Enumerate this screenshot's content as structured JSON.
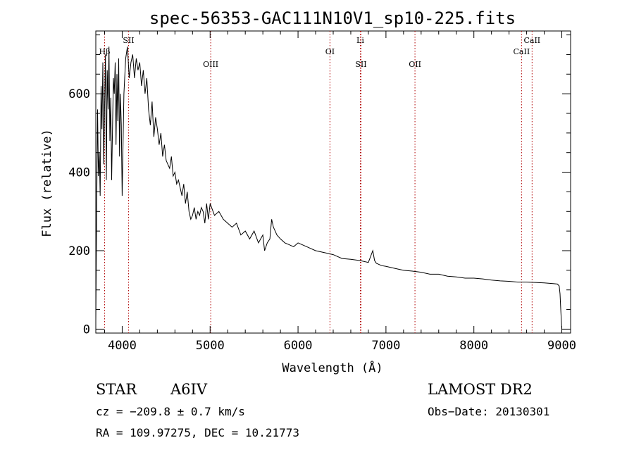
{
  "chart_data": {
    "type": "line",
    "title": "spec-56353-GAC111N10V1_sp10-225.fits",
    "xlabel": "Wavelength (Å)",
    "ylabel": "Flux (relative)",
    "xlim": [
      3700,
      9100
    ],
    "ylim": [
      -10,
      760
    ],
    "x_ticks": [
      4000,
      5000,
      6000,
      7000,
      8000,
      9000
    ],
    "y_ticks": [
      0,
      200,
      400,
      600
    ],
    "grid": false,
    "series": [
      {
        "x": [
          3700,
          3710,
          3720,
          3730,
          3740,
          3750,
          3760,
          3770,
          3780,
          3790,
          3800,
          3810,
          3820,
          3830,
          3840,
          3850,
          3860,
          3870,
          3880,
          3890,
          3900,
          3910,
          3920,
          3930,
          3940,
          3950,
          3960,
          3970,
          3980,
          3990,
          4000,
          4020,
          4040,
          4060,
          4080,
          4100,
          4120,
          4140,
          4160,
          4180,
          4200,
          4220,
          4240,
          4260,
          4280,
          4300,
          4320,
          4340,
          4360,
          4380,
          4400,
          4420,
          4440,
          4460,
          4480,
          4500,
          4520,
          4540,
          4560,
          4580,
          4600,
          4620,
          4640,
          4660,
          4680,
          4700,
          4720,
          4740,
          4760,
          4780,
          4800,
          4820,
          4840,
          4860,
          4880,
          4900,
          4920,
          4940,
          4960,
          4980,
          5000,
          5050,
          5100,
          5150,
          5200,
          5250,
          5300,
          5350,
          5400,
          5450,
          5500,
          5550,
          5600,
          5620,
          5650,
          5680,
          5700,
          5720,
          5740,
          5760,
          5800,
          5850,
          5900,
          5950,
          6000,
          6100,
          6200,
          6300,
          6400,
          6500,
          6600,
          6700,
          6800,
          6850,
          6870,
          6890,
          6950,
          7000,
          7100,
          7200,
          7300,
          7400,
          7500,
          7600,
          7700,
          7800,
          7900,
          8000,
          8100,
          8200,
          8300,
          8400,
          8500,
          8600,
          8700,
          8800,
          8850,
          8900,
          8950,
          8970,
          8980,
          8990,
          9000
        ],
        "values": [
          20,
          300,
          560,
          390,
          450,
          340,
          620,
          510,
          680,
          420,
          570,
          700,
          380,
          660,
          560,
          720,
          480,
          590,
          380,
          510,
          640,
          600,
          680,
          470,
          650,
          530,
          690,
          440,
          600,
          520,
          340,
          600,
          690,
          720,
          640,
          680,
          700,
          640,
          690,
          660,
          680,
          620,
          660,
          600,
          640,
          560,
          520,
          580,
          490,
          540,
          510,
          470,
          500,
          440,
          470,
          430,
          420,
          410,
          440,
          390,
          400,
          370,
          380,
          360,
          340,
          370,
          320,
          350,
          300,
          280,
          290,
          310,
          280,
          300,
          290,
          310,
          300,
          270,
          320,
          280,
          320,
          290,
          300,
          280,
          270,
          260,
          270,
          240,
          250,
          230,
          250,
          220,
          240,
          200,
          220,
          230,
          280,
          260,
          250,
          240,
          230,
          220,
          215,
          210,
          220,
          210,
          200,
          195,
          190,
          180,
          178,
          175,
          170,
          200,
          175,
          168,
          162,
          160,
          155,
          150,
          148,
          145,
          140,
          140,
          135,
          133,
          130,
          130,
          128,
          125,
          123,
          122,
          120,
          120,
          119,
          118,
          117,
          116,
          115,
          110,
          90,
          40,
          0
        ]
      }
    ],
    "spectral_lines": [
      {
        "label": "Hβ",
        "x": 3800,
        "row": "top2"
      },
      {
        "label": "SII",
        "x": 4072,
        "row": "top1"
      },
      {
        "label": "OIII",
        "x": 5007,
        "row": "mid"
      },
      {
        "label": "OI",
        "x": 6363,
        "row": "top2"
      },
      {
        "label": "Li",
        "x": 6708,
        "row": "top1"
      },
      {
        "label": "SII",
        "x": 6716,
        "row": "mid"
      },
      {
        "label": "OII",
        "x": 7330,
        "row": "mid"
      },
      {
        "label": "CaII",
        "x": 8542,
        "row": "top2"
      },
      {
        "label": "CaII",
        "x": 8662,
        "row": "top1"
      }
    ]
  },
  "info": {
    "class_label": "STAR",
    "subclass": "A6IV",
    "survey": "LAMOST DR2",
    "cz": "cz = −209.8 ± 0.7 km/s",
    "obs_date": "Obs−Date: 20130301",
    "coords": "RA = 109.97275, DEC =  10.21773"
  }
}
